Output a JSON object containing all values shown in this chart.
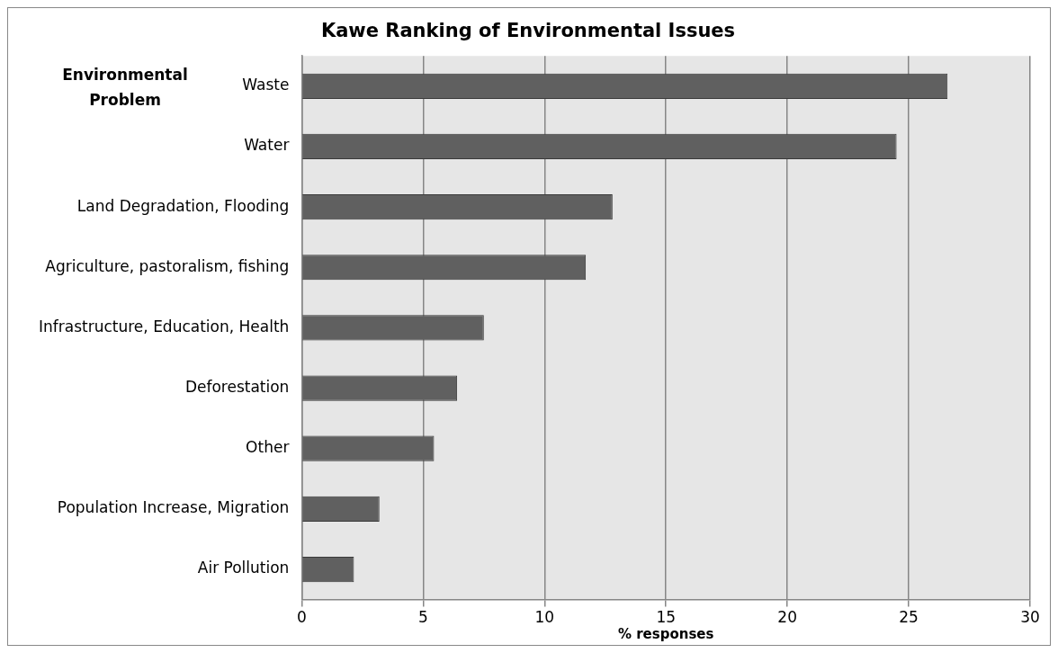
{
  "chart_data": {
    "type": "bar",
    "orientation": "horizontal",
    "title": "Kawe Ranking of Environmental Issues",
    "xlabel": "% responses",
    "ylabel": "Environmental Problem",
    "categories": [
      "Waste",
      "Water",
      "Land Degradation, Flooding",
      "Agriculture, pastoralism, fishing",
      "Infrastructure, Education, Health",
      "Deforestation",
      "Other",
      "Population Increase, Migration",
      "Air Pollution"
    ],
    "series": [
      {
        "color": "#606060",
        "values": [
          26.6,
          24.5,
          12.8,
          11.7,
          7.5,
          6.4,
          5.45,
          3.2,
          2.15
        ]
      }
    ],
    "xlim": [
      0,
      30
    ],
    "xticks": [
      0,
      5,
      10,
      15,
      20,
      25,
      30
    ],
    "grid": "x",
    "legend": false
  }
}
